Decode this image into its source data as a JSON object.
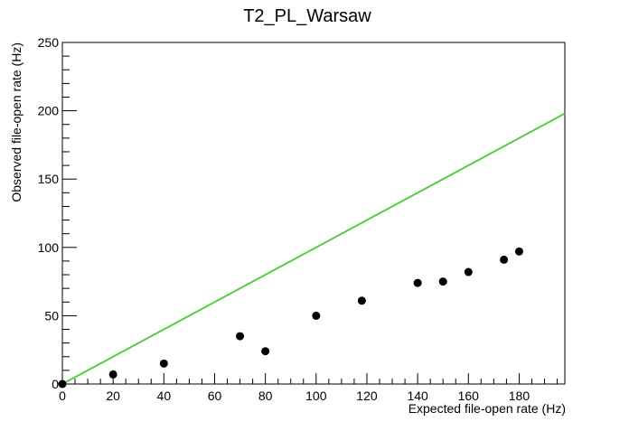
{
  "chart_data": {
    "type": "scatter",
    "title": "T2_PL_Warsaw",
    "xlabel": "Expected file-open rate (Hz)",
    "ylabel": "Observed file-open rate (Hz)",
    "xlim": [
      0,
      198
    ],
    "ylim": [
      0,
      250
    ],
    "x_ticks": [
      0,
      20,
      40,
      60,
      80,
      100,
      120,
      140,
      160,
      180
    ],
    "y_ticks": [
      0,
      50,
      100,
      150,
      200,
      250
    ],
    "grid": false,
    "series": [
      {
        "type": "scatter",
        "color": "#000000",
        "points": [
          {
            "x": 0,
            "y": 0
          },
          {
            "x": 20,
            "y": 7
          },
          {
            "x": 40,
            "y": 15
          },
          {
            "x": 70,
            "y": 35
          },
          {
            "x": 80,
            "y": 24
          },
          {
            "x": 100,
            "y": 50
          },
          {
            "x": 118,
            "y": 61
          },
          {
            "x": 140,
            "y": 74
          },
          {
            "x": 150,
            "y": 75
          },
          {
            "x": 160,
            "y": 82
          },
          {
            "x": 174,
            "y": 91
          },
          {
            "x": 180,
            "y": 97
          }
        ]
      },
      {
        "type": "line",
        "color": "#55cc44",
        "points": [
          {
            "x": 0,
            "y": 0
          },
          {
            "x": 198,
            "y": 198
          }
        ]
      }
    ]
  }
}
